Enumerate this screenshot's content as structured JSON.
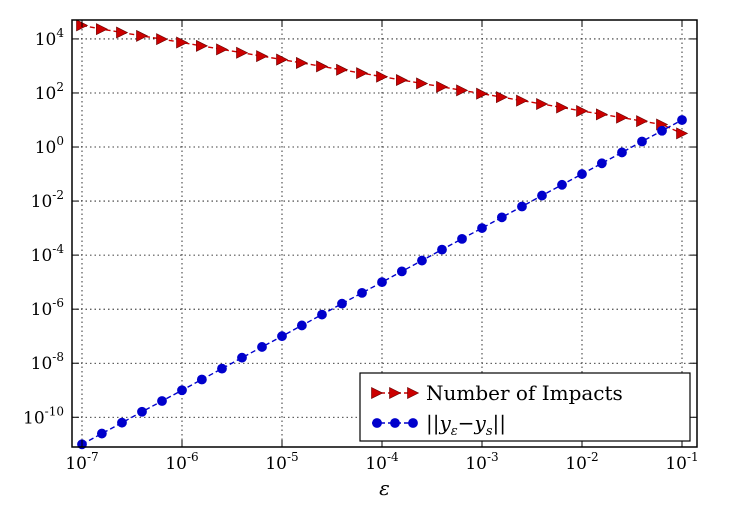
{
  "chart_data": {
    "type": "line",
    "title": "",
    "xlabel": "ε",
    "ylabel": "",
    "x_scale": "log",
    "y_scale": "log",
    "xlim": [
      1e-07,
      0.1
    ],
    "ylim": [
      1e-11,
      100000.0
    ],
    "grid": true,
    "legend_position": "bottom-right",
    "x_ticks": [
      {
        "value": 1e-07,
        "base": "10",
        "exp": "-7"
      },
      {
        "value": 1e-06,
        "base": "10",
        "exp": "-6"
      },
      {
        "value": 1e-05,
        "base": "10",
        "exp": "-5"
      },
      {
        "value": 0.0001,
        "base": "10",
        "exp": "-4"
      },
      {
        "value": 0.001,
        "base": "10",
        "exp": "-3"
      },
      {
        "value": 0.01,
        "base": "10",
        "exp": "-2"
      },
      {
        "value": 0.1,
        "base": "10",
        "exp": "-1"
      }
    ],
    "y_ticks": [
      {
        "value": 10000.0,
        "base": "10",
        "exp": "4"
      },
      {
        "value": 100.0,
        "base": "10",
        "exp": "2"
      },
      {
        "value": 1.0,
        "base": "10",
        "exp": "0"
      },
      {
        "value": 0.01,
        "base": "10",
        "exp": "-2"
      },
      {
        "value": 0.0001,
        "base": "10",
        "exp": "-4"
      },
      {
        "value": 1e-06,
        "base": "10",
        "exp": "-6"
      },
      {
        "value": 1e-08,
        "base": "10",
        "exp": "-8"
      },
      {
        "value": 1e-10,
        "base": "10",
        "exp": "-10"
      }
    ],
    "series": [
      {
        "name": "Number of Impacts",
        "color": "#cc0000",
        "marker": "triangle-right",
        "line_style": "dashed",
        "x": [
          1e-07,
          1.58e-07,
          2.51e-07,
          3.98e-07,
          6.31e-07,
          1e-06,
          1.58e-06,
          2.51e-06,
          3.98e-06,
          6.31e-06,
          1e-05,
          1.58e-05,
          2.51e-05,
          3.98e-05,
          6.31e-05,
          0.0001,
          0.000158,
          0.000251,
          0.000398,
          0.000631,
          0.001,
          0.00158,
          0.00251,
          0.00398,
          0.00631,
          0.01,
          0.0158,
          0.0251,
          0.0398,
          0.0631,
          0.1
        ],
        "y": [
          31600,
          23000,
          17200,
          12900,
          9800,
          7380,
          5500,
          4100,
          3080,
          2300,
          1720,
          1290,
          960,
          720,
          540,
          400,
          300,
          225,
          168,
          125,
          94,
          70,
          52,
          39,
          29,
          21.5,
          16.2,
          12.2,
          9.1,
          6.8,
          3.2
        ]
      },
      {
        "name": "||y_ε − y_s||",
        "color": "#0000cc",
        "marker": "circle",
        "line_style": "dashed",
        "x": [
          1e-07,
          1.58e-07,
          2.51e-07,
          3.98e-07,
          6.31e-07,
          1e-06,
          1.58e-06,
          2.51e-06,
          3.98e-06,
          6.31e-06,
          1e-05,
          1.58e-05,
          2.51e-05,
          3.98e-05,
          6.31e-05,
          0.0001,
          0.000158,
          0.000251,
          0.000398,
          0.000631,
          0.001,
          0.00158,
          0.00251,
          0.00398,
          0.00631,
          0.01,
          0.0158,
          0.0251,
          0.0398,
          0.0631,
          0.1
        ],
        "y": [
          1e-11,
          2.5e-11,
          6.3e-11,
          1.6e-10,
          4e-10,
          1e-09,
          2.5e-09,
          6.3e-09,
          1.6e-08,
          4e-08,
          1e-07,
          2.5e-07,
          6.3e-07,
          1.6e-06,
          4e-06,
          1e-05,
          2.5e-05,
          6.3e-05,
          0.00016,
          0.0004,
          0.001,
          0.0025,
          0.0063,
          0.016,
          0.04,
          0.1,
          0.25,
          0.63,
          1.6,
          4,
          10
        ]
      }
    ],
    "legend": [
      {
        "label": "Number of Impacts"
      },
      {
        "label_main": "||y",
        "label_sub1": "ε",
        "label_mid": "−y",
        "label_sub2": "s",
        "label_end": "||"
      }
    ]
  }
}
